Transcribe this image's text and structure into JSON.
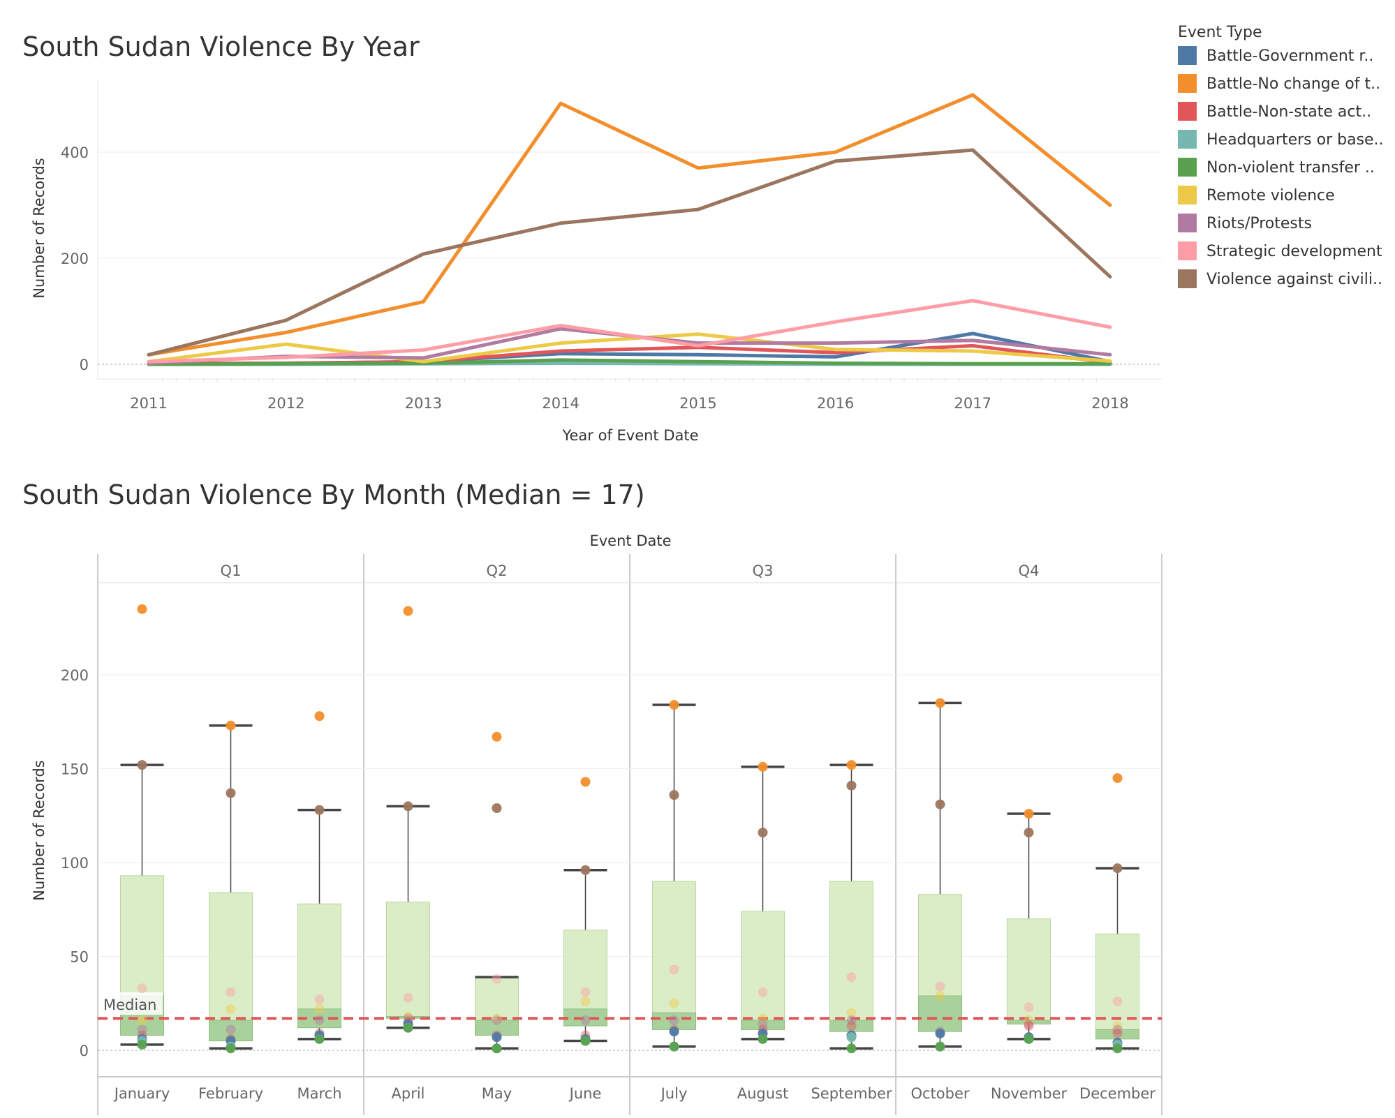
{
  "legend": {
    "title": "Event Type",
    "items": [
      {
        "label": "Battle-Government r..",
        "color": "#4e79a7"
      },
      {
        "label": "Battle-No change of t..",
        "color": "#f28e2b"
      },
      {
        "label": "Battle-Non-state act..",
        "color": "#e15759"
      },
      {
        "label": "Headquarters or base..",
        "color": "#76b7b2"
      },
      {
        "label": "Non-violent transfer ..",
        "color": "#59a14f"
      },
      {
        "label": "Remote violence",
        "color": "#edc948"
      },
      {
        "label": "Riots/Protests",
        "color": "#b07aa1"
      },
      {
        "label": "Strategic development",
        "color": "#ff9da7"
      },
      {
        "label": "Violence against civili..",
        "color": "#9c755f"
      }
    ]
  },
  "chart_data": [
    {
      "type": "line",
      "title": "South Sudan Violence By Year",
      "xlabel": "Year of Event Date",
      "ylabel": "Number of Records",
      "x": [
        "2011",
        "2012",
        "2013",
        "2014",
        "2015",
        "2016",
        "2017",
        "2018"
      ],
      "ylim": [
        0,
        520
      ],
      "yticks": [
        "0",
        "200",
        "400"
      ],
      "series": [
        {
          "name": "Battle-Government r..",
          "color": "#4e79a7",
          "values": [
            1,
            2,
            5,
            20,
            18,
            14,
            58,
            5
          ]
        },
        {
          "name": "Battle-No change of t..",
          "color": "#f28e2b",
          "values": [
            18,
            60,
            118,
            492,
            370,
            400,
            508,
            300
          ]
        },
        {
          "name": "Battle-Non-state act..",
          "color": "#e15759",
          "values": [
            1,
            2,
            5,
            25,
            32,
            22,
            35,
            3
          ]
        },
        {
          "name": "Headquarters or base..",
          "color": "#76b7b2",
          "values": [
            0,
            0,
            1,
            2,
            1,
            0,
            0,
            0
          ]
        },
        {
          "name": "Non-violent transfer ..",
          "color": "#59a14f",
          "values": [
            0,
            1,
            2,
            8,
            5,
            2,
            1,
            1
          ]
        },
        {
          "name": "Remote violence",
          "color": "#edc948",
          "values": [
            5,
            38,
            5,
            40,
            57,
            28,
            25,
            6
          ]
        },
        {
          "name": "Riots/Protests",
          "color": "#b07aa1",
          "values": [
            2,
            15,
            12,
            67,
            40,
            40,
            45,
            18
          ]
        },
        {
          "name": "Strategic development",
          "color": "#ff9da7",
          "values": [
            5,
            13,
            27,
            73,
            35,
            80,
            120,
            70
          ]
        },
        {
          "name": "Violence against civili..",
          "color": "#9c755f",
          "values": [
            18,
            83,
            208,
            266,
            292,
            383,
            404,
            165
          ]
        }
      ]
    },
    {
      "type": "box",
      "title": "South Sudan Violence By Month (Median = 17)",
      "xlabel": "Event Date",
      "ylabel": "Number of Records",
      "ylim": [
        -15,
        250
      ],
      "yticks": [
        "0",
        "50",
        "100",
        "150",
        "200"
      ],
      "reference_line": {
        "label": "Median",
        "value": 17,
        "color": "#e15759"
      },
      "quarters": [
        "Q1",
        "Q2",
        "Q3",
        "Q4"
      ],
      "months": [
        {
          "name": "January",
          "low": 3,
          "q1": 8,
          "median": 29,
          "q3": 93,
          "high": 152,
          "points": [
            235,
            152,
            33,
            16,
            11,
            8,
            6,
            5,
            3
          ]
        },
        {
          "name": "February",
          "low": 1,
          "q1": 5,
          "median": 16,
          "q3": 84,
          "high": 173,
          "points": [
            173,
            137,
            31,
            22,
            11,
            6,
            5,
            2,
            1
          ]
        },
        {
          "name": "March",
          "low": 6,
          "q1": 12,
          "median": 22,
          "q3": 78,
          "high": 128,
          "points": [
            178,
            128,
            27,
            22,
            16,
            9,
            8,
            6,
            6
          ]
        },
        {
          "name": "April",
          "low": 12,
          "q1": 17,
          "median": 18,
          "q3": 79,
          "high": 130,
          "points": [
            234,
            130,
            28,
            18,
            17,
            15,
            14,
            12,
            12
          ]
        },
        {
          "name": "May",
          "low": 1,
          "q1": 8,
          "median": 16,
          "q3": 39,
          "high": 39,
          "points": [
            167,
            129,
            38,
            17,
            16,
            8,
            7,
            1,
            1
          ]
        },
        {
          "name": "June",
          "low": 5,
          "q1": 13,
          "median": 22,
          "q3": 64,
          "high": 96,
          "points": [
            143,
            96,
            31,
            26,
            16,
            8,
            6,
            5,
            5
          ]
        },
        {
          "name": "July",
          "low": 2,
          "q1": 11,
          "median": 20,
          "q3": 90,
          "high": 184,
          "points": [
            184,
            136,
            43,
            25,
            16,
            11,
            10,
            2,
            2
          ]
        },
        {
          "name": "August",
          "low": 6,
          "q1": 11,
          "median": 16,
          "q3": 74,
          "high": 151,
          "points": [
            151,
            116,
            31,
            17,
            14,
            11,
            9,
            6,
            6
          ]
        },
        {
          "name": "September",
          "low": 1,
          "q1": 10,
          "median": 16,
          "q3": 90,
          "high": 152,
          "points": [
            152,
            141,
            39,
            20,
            16,
            13,
            8,
            7,
            1
          ]
        },
        {
          "name": "October",
          "low": 2,
          "q1": 10,
          "median": 29,
          "q3": 83,
          "high": 185,
          "points": [
            185,
            131,
            34,
            29,
            10,
            9,
            9,
            2,
            2
          ]
        },
        {
          "name": "November",
          "low": 6,
          "q1": 14,
          "median": 16,
          "q3": 70,
          "high": 126,
          "points": [
            126,
            116,
            23,
            16,
            14,
            13,
            7,
            6,
            6
          ]
        },
        {
          "name": "December",
          "low": 1,
          "q1": 6,
          "median": 11,
          "q3": 62,
          "high": 97,
          "points": [
            145,
            97,
            26,
            13,
            11,
            9,
            4,
            3,
            1
          ]
        }
      ]
    }
  ]
}
